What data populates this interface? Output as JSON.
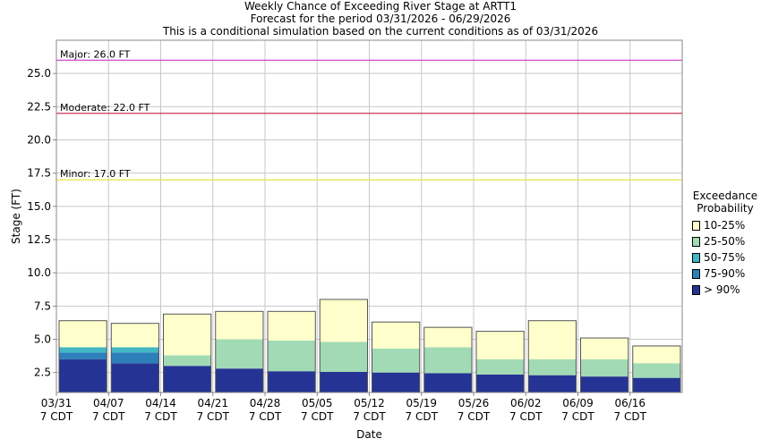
{
  "title": {
    "line1": "Weekly Chance of Exceeding River Stage at ARTT1",
    "line2": "Forecast for the period 03/31/2026 - 06/29/2026",
    "line3": "This is a conditional simulation based on the current conditions as of 03/31/2026"
  },
  "legend": {
    "title_line1": "Exceedance",
    "title_line2": "Probability",
    "items": [
      {
        "label": "10-25%",
        "color": "#ffffcc"
      },
      {
        "label": "25-50%",
        "color": "#a1dab4"
      },
      {
        "label": "50-75%",
        "color": "#41b6c4"
      },
      {
        "label": "75-90%",
        "color": "#2c7fb8"
      },
      {
        "label": "> 90%",
        "color": "#253494"
      }
    ]
  },
  "chart_data": {
    "type": "bar",
    "xlabel": "Date",
    "ylabel": "Stage (FT)",
    "ylim": [
      1.0,
      27.5
    ],
    "yticks": [
      2.5,
      5.0,
      7.5,
      10.0,
      12.5,
      15.0,
      17.5,
      20.0,
      22.5,
      25.0
    ],
    "x_ticks": [
      {
        "date": "03/31",
        "tz": "7 CDT"
      },
      {
        "date": "04/07",
        "tz": "7 CDT"
      },
      {
        "date": "04/14",
        "tz": "7 CDT"
      },
      {
        "date": "04/21",
        "tz": "7 CDT"
      },
      {
        "date": "04/28",
        "tz": "7 CDT"
      },
      {
        "date": "05/05",
        "tz": "7 CDT"
      },
      {
        "date": "05/12",
        "tz": "7 CDT"
      },
      {
        "date": "05/19",
        "tz": "7 CDT"
      },
      {
        "date": "05/26",
        "tz": "7 CDT"
      },
      {
        "date": "06/02",
        "tz": "7 CDT"
      },
      {
        "date": "06/09",
        "tz": "7 CDT"
      },
      {
        "date": "06/16",
        "tz": "7 CDT"
      }
    ],
    "grid": true,
    "thresholds": [
      {
        "label": "Major: 26.0 FT",
        "value": 26.0,
        "color": "#cc33cc"
      },
      {
        "label": "Moderate: 22.0 FT",
        "value": 22.0,
        "color": "#cc3355"
      },
      {
        "label": "Minor: 17.0 FT",
        "value": 17.0,
        "color": "#e6e640"
      }
    ],
    "weeks": [
      {
        "start": "03/31",
        "gt90": 3.5,
        "p75_90": 4.0,
        "p50_75": 4.4,
        "p25_50": 4.4,
        "p10_25": 6.4
      },
      {
        "start": "04/07",
        "gt90": 3.2,
        "p75_90": 4.0,
        "p50_75": 4.4,
        "p25_50": 4.4,
        "p10_25": 6.2
      },
      {
        "start": "04/14",
        "gt90": 3.0,
        "p75_90": 3.0,
        "p50_75": 3.0,
        "p25_50": 3.8,
        "p10_25": 6.9
      },
      {
        "start": "04/21",
        "gt90": 2.8,
        "p75_90": 2.8,
        "p50_75": 2.8,
        "p25_50": 5.0,
        "p10_25": 7.1
      },
      {
        "start": "04/28",
        "gt90": 2.6,
        "p75_90": 2.6,
        "p50_75": 2.6,
        "p25_50": 4.9,
        "p10_25": 7.1
      },
      {
        "start": "05/05",
        "gt90": 2.55,
        "p75_90": 2.55,
        "p50_75": 2.55,
        "p25_50": 4.8,
        "p10_25": 8.0
      },
      {
        "start": "05/12",
        "gt90": 2.5,
        "p75_90": 2.5,
        "p50_75": 2.5,
        "p25_50": 4.3,
        "p10_25": 6.3
      },
      {
        "start": "05/19",
        "gt90": 2.45,
        "p75_90": 2.45,
        "p50_75": 2.45,
        "p25_50": 4.4,
        "p10_25": 5.9
      },
      {
        "start": "05/26",
        "gt90": 2.35,
        "p75_90": 2.35,
        "p50_75": 2.35,
        "p25_50": 3.5,
        "p10_25": 5.6
      },
      {
        "start": "06/02",
        "gt90": 2.3,
        "p75_90": 2.3,
        "p50_75": 2.3,
        "p25_50": 3.5,
        "p10_25": 6.4
      },
      {
        "start": "06/09",
        "gt90": 2.2,
        "p75_90": 2.2,
        "p50_75": 2.2,
        "p25_50": 3.5,
        "p10_25": 5.1
      },
      {
        "start": "06/16",
        "gt90": 2.1,
        "p75_90": 2.1,
        "p50_75": 2.1,
        "p25_50": 3.2,
        "p10_25": 4.5
      }
    ]
  }
}
